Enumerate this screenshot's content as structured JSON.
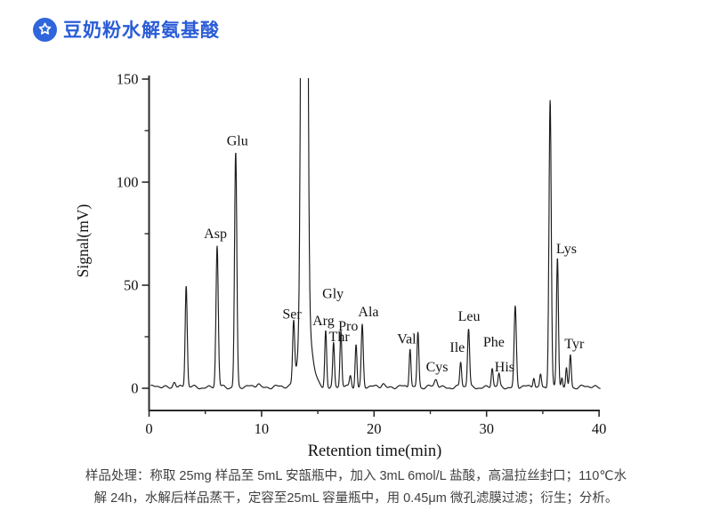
{
  "header": {
    "title": "豆奶粉水解氨基酸",
    "accent_color": "#2a5cd7",
    "icon_color": "#2f66db",
    "icon": "star-badge-icon"
  },
  "caption": {
    "line1": "样品处理：称取 25mg 样品至 5mL 安瓿瓶中，加入 3mL 6mol/L 盐酸，高温拉丝封口；110℃水",
    "line2": "解 24h，水解后样品蒸干，定容至25mL 容量瓶中，用 0.45μm 微孔滤膜过滤；衍生；分析。"
  },
  "chart_data": {
    "type": "line",
    "title": "",
    "xlabel": "Retention time(min)",
    "ylabel": "Signal(mV)",
    "xlim": [
      0,
      40
    ],
    "ylim": [
      0,
      150
    ],
    "x_major_ticks": [
      0,
      10,
      20,
      30,
      40
    ],
    "x_minor_ticks": [
      5,
      15,
      25,
      35
    ],
    "y_major_ticks": [
      0,
      50,
      100,
      150
    ],
    "y_minor_ticks": [
      25,
      75,
      125
    ],
    "grid": "off",
    "legend": "none",
    "line_color": "#1b1b1b",
    "axis_color": "#2b2b2b",
    "peaks": [
      {
        "t": 2.25,
        "mv": 3,
        "w": 0.12,
        "label": ""
      },
      {
        "t": 3.3,
        "mv": 49,
        "w": 0.09,
        "label": ""
      },
      {
        "t": 6.05,
        "mv": 68,
        "w": 0.1,
        "label": "Asp"
      },
      {
        "t": 7.7,
        "mv": 114,
        "w": 0.1,
        "label": "Glu"
      },
      {
        "t": 9.7,
        "mv": 2,
        "w": 0.15,
        "label": ""
      },
      {
        "t": 12.85,
        "mv": 29,
        "w": 0.09,
        "label": "Ser"
      },
      {
        "t": 13.8,
        "mv": 900,
        "w": 0.18,
        "label": "",
        "clipped": true
      },
      {
        "t": 13.9,
        "mv": 35,
        "w": 0.5,
        "label": ""
      },
      {
        "t": 15.7,
        "mv": 28,
        "w": 0.085,
        "label": "Arg"
      },
      {
        "t": 16.4,
        "mv": 21,
        "w": 0.08,
        "label": "Thr"
      },
      {
        "t": 17.05,
        "mv": 27,
        "w": 0.08,
        "label": "Gly"
      },
      {
        "t": 17.9,
        "mv": 6,
        "w": 0.09,
        "label": ""
      },
      {
        "t": 18.4,
        "mv": 21,
        "w": 0.08,
        "label": "Pro"
      },
      {
        "t": 18.95,
        "mv": 30,
        "w": 0.09,
        "label": "Ala"
      },
      {
        "t": 20.8,
        "mv": 2,
        "w": 0.15,
        "label": ""
      },
      {
        "t": 23.2,
        "mv": 19,
        "w": 0.08,
        "label": ""
      },
      {
        "t": 23.9,
        "mv": 27,
        "w": 0.085,
        "label": "Val"
      },
      {
        "t": 25.5,
        "mv": 3.5,
        "w": 0.13,
        "label": "Cys"
      },
      {
        "t": 27.7,
        "mv": 12,
        "w": 0.08,
        "label": "Ile"
      },
      {
        "t": 28.4,
        "mv": 28,
        "w": 0.09,
        "label": "Leu"
      },
      {
        "t": 30.5,
        "mv": 9,
        "w": 0.08,
        "label": "Phe"
      },
      {
        "t": 31.1,
        "mv": 6,
        "w": 0.08,
        "label": "His"
      },
      {
        "t": 32.55,
        "mv": 39,
        "w": 0.1,
        "label": ""
      },
      {
        "t": 34.2,
        "mv": 5,
        "w": 0.08,
        "label": ""
      },
      {
        "t": 34.8,
        "mv": 6.5,
        "w": 0.08,
        "label": ""
      },
      {
        "t": 35.65,
        "mv": 139,
        "w": 0.1,
        "label": ""
      },
      {
        "t": 36.3,
        "mv": 62,
        "w": 0.085,
        "label": "Lys"
      },
      {
        "t": 36.7,
        "mv": 5,
        "w": 0.07,
        "label": ""
      },
      {
        "t": 37.1,
        "mv": 9,
        "w": 0.07,
        "label": ""
      },
      {
        "t": 37.45,
        "mv": 16,
        "w": 0.08,
        "label": "Tyr"
      }
    ],
    "annotations": [
      {
        "text": "Asp",
        "t": 5.9,
        "mv": 75
      },
      {
        "text": "Glu",
        "t": 7.85,
        "mv": 120
      },
      {
        "text": "Ser",
        "t": 12.7,
        "mv": 36
      },
      {
        "text": "Arg",
        "t": 15.5,
        "mv": 32.8
      },
      {
        "text": "Gly",
        "t": 16.35,
        "mv": 46
      },
      {
        "text": "Thr",
        "t": 16.9,
        "mv": 25
      },
      {
        "text": "Pro",
        "t": 17.7,
        "mv": 30.2
      },
      {
        "text": "Ala",
        "t": 19.5,
        "mv": 37
      },
      {
        "text": "Val",
        "t": 22.9,
        "mv": 24
      },
      {
        "text": "Cys",
        "t": 25.6,
        "mv": 10.3
      },
      {
        "text": "Ile",
        "t": 27.4,
        "mv": 19.8
      },
      {
        "text": "Leu",
        "t": 28.45,
        "mv": 35
      },
      {
        "text": "Phe",
        "t": 30.65,
        "mv": 22.4
      },
      {
        "text": "His",
        "t": 31.6,
        "mv": 10.3
      },
      {
        "text": "Lys",
        "t": 37.1,
        "mv": 67.7
      },
      {
        "text": "Tyr",
        "t": 37.8,
        "mv": 21.5
      }
    ]
  }
}
